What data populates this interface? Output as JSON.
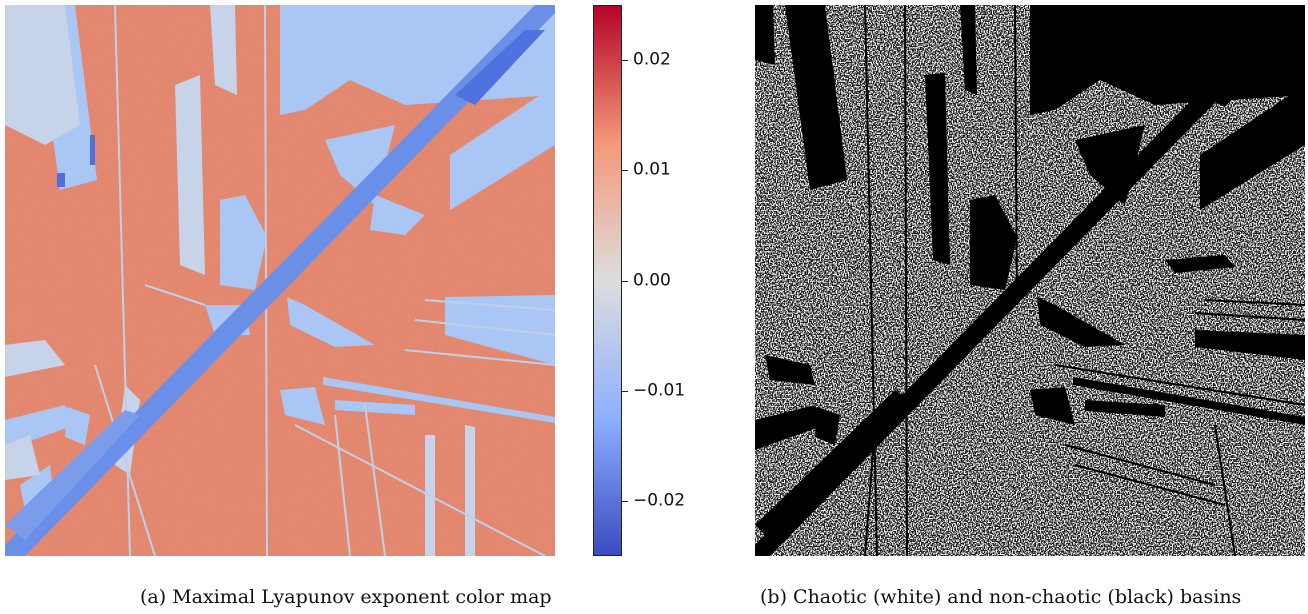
{
  "figure": {
    "colorbar": {
      "colormap": "coolwarm",
      "range": [
        -0.025,
        0.025
      ],
      "ticks": [
        {
          "value": 0.02,
          "label": "0.02"
        },
        {
          "value": 0.01,
          "label": "0.01"
        },
        {
          "value": 0.0,
          "label": "0.00"
        },
        {
          "value": -0.01,
          "label": "−0.01"
        },
        {
          "value": -0.02,
          "label": "−0.02"
        }
      ],
      "colors": {
        "low": "#3b4cc0",
        "mid": "#dddddd",
        "high": "#b40426"
      }
    },
    "captions": {
      "a": "(a) Maximal Lyapunov exponent color map",
      "b": "(b) Chaotic (white) and non-chaotic (black) basins"
    },
    "colors": {
      "chaotic_map": "#e07b61",
      "regular_light": "#a9c6f5",
      "regular_mid": "#c9d4e6",
      "diagonal": "#6a8fe8",
      "basin_chaotic": "#ffffff",
      "basin_regular": "#000000"
    }
  }
}
